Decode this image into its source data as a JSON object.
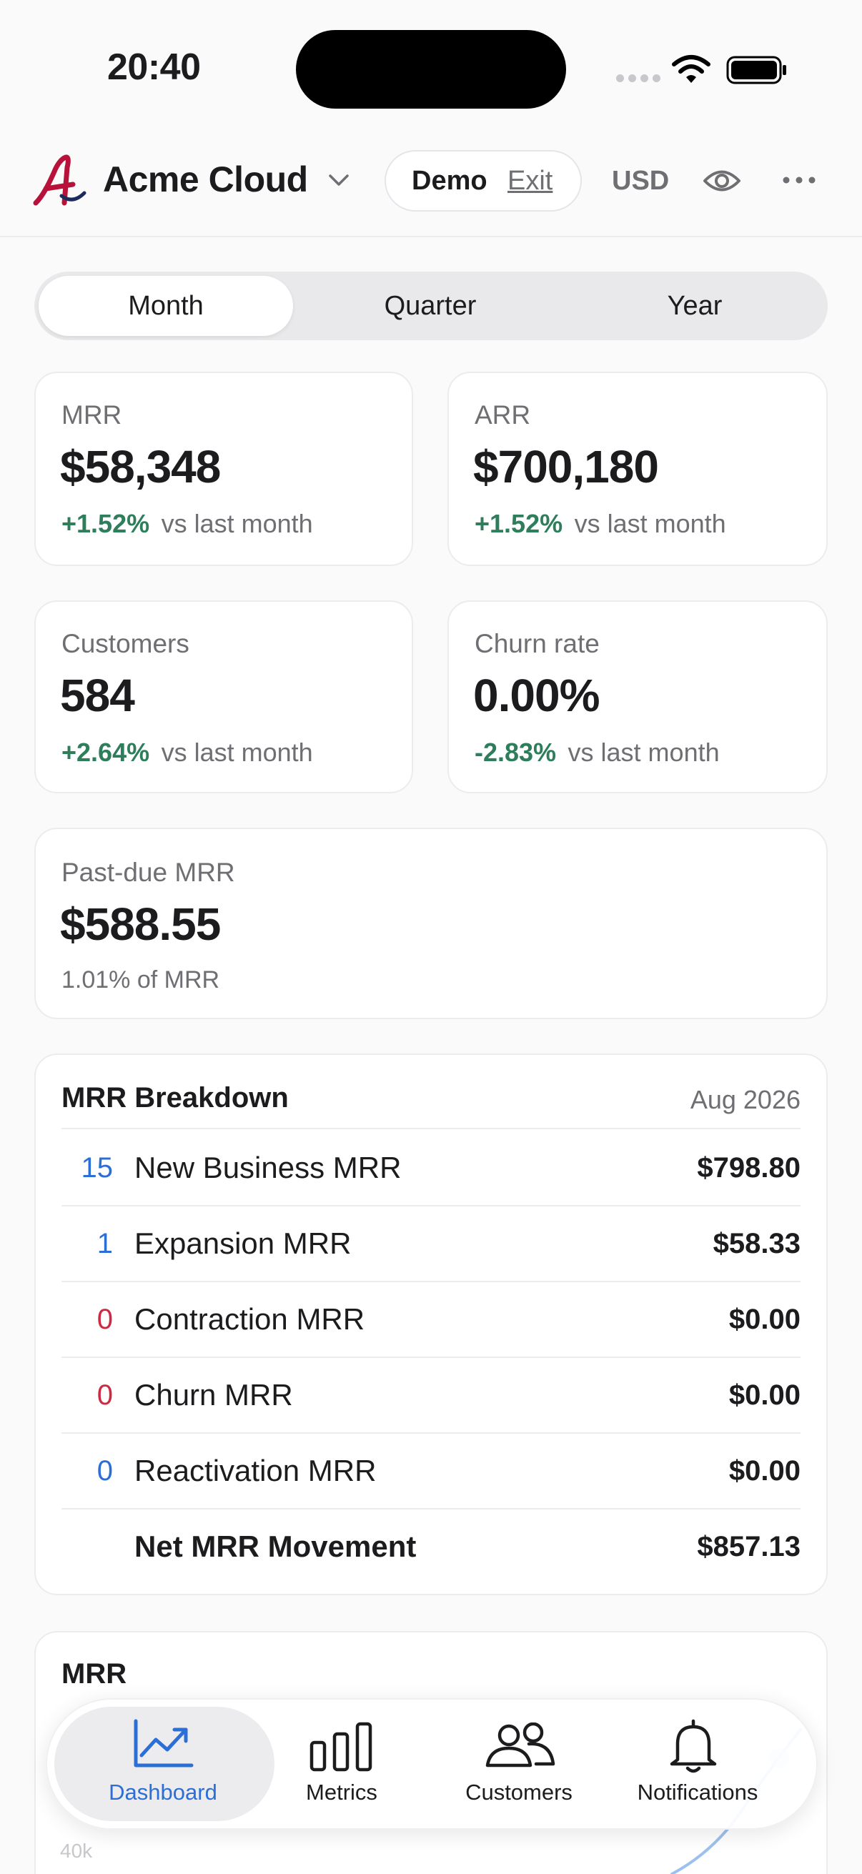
{
  "status_bar": {
    "time": "20:40"
  },
  "header": {
    "app_name": "Acme Cloud",
    "demo_label": "Demo",
    "exit_label": "Exit",
    "currency": "USD",
    "icons": [
      "logo-icon",
      "chevron-down-icon",
      "eye-icon",
      "more-icon"
    ]
  },
  "period_tabs": {
    "selected": "Month",
    "items": [
      "Month",
      "Quarter",
      "Year"
    ]
  },
  "metrics": {
    "mrr": {
      "label": "MRR",
      "value": "$58,348",
      "change": "+1.52%",
      "suffix": "vs last month"
    },
    "arr": {
      "label": "ARR",
      "value": "$700,180",
      "change": "+1.52%",
      "suffix": "vs last month"
    },
    "customers": {
      "label": "Customers",
      "value": "584",
      "change": "+2.64%",
      "suffix": "vs last month"
    },
    "churn": {
      "label": "Churn rate",
      "value": "0.00%",
      "change": "-2.83%",
      "suffix": "vs last month"
    },
    "past_due": {
      "label": "Past-due MRR",
      "value": "$588.55",
      "sub": "1.01% of MRR"
    }
  },
  "breakdown": {
    "title": "MRR Breakdown",
    "period": "Aug 2026",
    "rows": [
      {
        "count": "15",
        "label": "New Business MRR",
        "value": "$798.80",
        "count_color": "#2b6fd6"
      },
      {
        "count": "1",
        "label": "Expansion MRR",
        "value": "$58.33",
        "count_color": "#2b6fd6"
      },
      {
        "count": "0",
        "label": "Contraction MRR",
        "value": "$0.00",
        "count_color": "#cc2a43"
      },
      {
        "count": "0",
        "label": "Churn MRR",
        "value": "$0.00",
        "count_color": "#cc2a43"
      },
      {
        "count": "0",
        "label": "Reactivation MRR",
        "value": "$0.00",
        "count_color": "#2b6fd6"
      }
    ],
    "total": {
      "label": "Net MRR Movement",
      "value": "$857.13"
    }
  },
  "mrr_chart": {
    "title": "MRR",
    "axis_label": "40k"
  },
  "tab_bar": {
    "selected": "Dashboard",
    "items": [
      {
        "label": "Dashboard",
        "icon": "chart-trend-icon"
      },
      {
        "label": "Metrics",
        "icon": "bar-chart-icon"
      },
      {
        "label": "Customers",
        "icon": "users-icon"
      },
      {
        "label": "Notifications",
        "icon": "bell-icon"
      }
    ]
  },
  "colors": {
    "accent": "#2b6fd6",
    "positive": "#2e7d5b",
    "negative": "#cc2a43"
  }
}
